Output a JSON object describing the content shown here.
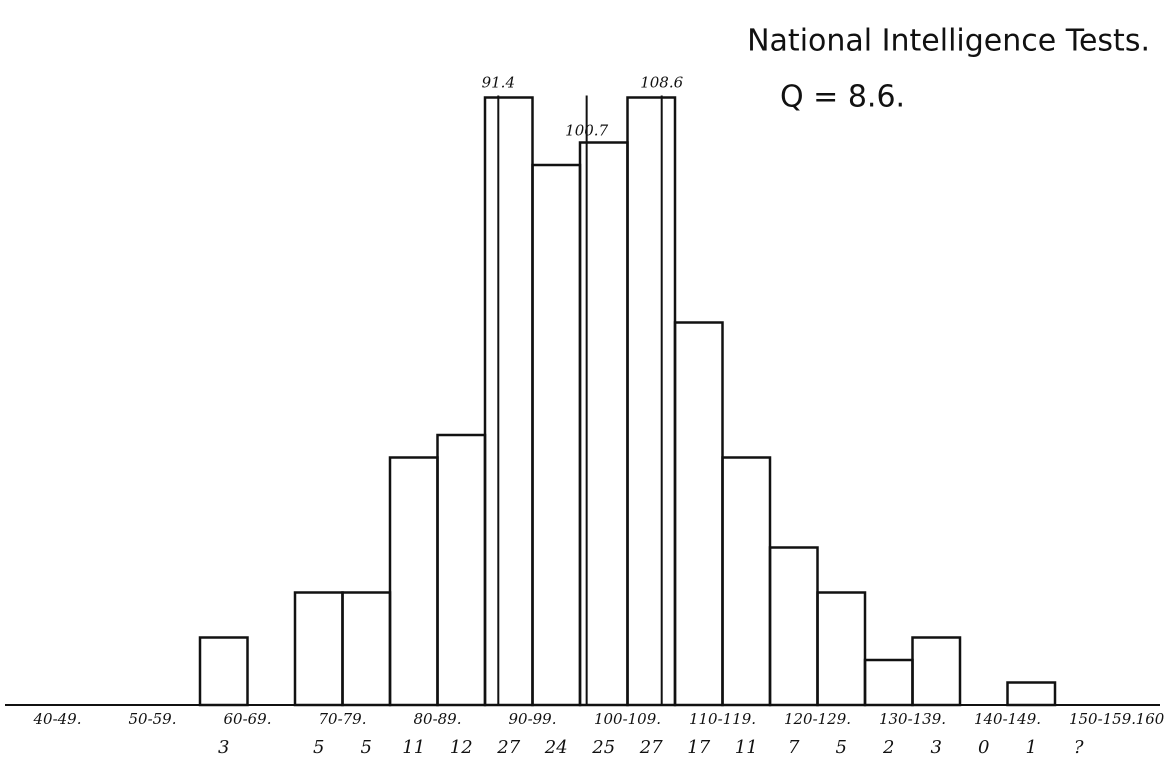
{
  "chart_data": {
    "type": "histogram",
    "title": "National Intelligence Tests.",
    "subtitle": "Q = 8.6.",
    "bins": [
      60,
      65,
      70,
      75,
      80,
      85,
      90,
      95,
      100,
      105,
      110,
      115,
      120,
      125,
      130,
      135,
      140,
      145,
      150,
      155
    ],
    "values": [
      3,
      0,
      5,
      5,
      11,
      12,
      27,
      24,
      25,
      27,
      17,
      11,
      7,
      5,
      2,
      3,
      0,
      1,
      null
    ],
    "value_labels": [
      "3",
      null,
      "5",
      "5",
      "11",
      "12",
      "27",
      "24",
      "25",
      "27",
      "17",
      "11",
      "7",
      "5",
      "2",
      "3",
      "0",
      "1",
      "?"
    ],
    "color": "#111111",
    "xlim": [
      40,
      160
    ],
    "xticks": [
      {
        "value": 45,
        "label": "40-49."
      },
      {
        "value": 55,
        "label": "50-59."
      },
      {
        "value": 65,
        "label": "60-69."
      },
      {
        "value": 75,
        "label": "70-79."
      },
      {
        "value": 85,
        "label": "80-89."
      },
      {
        "value": 95,
        "label": "90-99."
      },
      {
        "value": 105,
        "label": "100-109."
      },
      {
        "value": 115,
        "label": "110-119."
      },
      {
        "value": 125,
        "label": "120-129."
      },
      {
        "value": 135,
        "label": "130-139."
      },
      {
        "value": 145,
        "label": "140-149."
      },
      {
        "value": 155,
        "label": "150-159."
      },
      160
    ],
    "ylim": [
      0,
      30
    ],
    "markers": [
      91.4,
      100.7,
      108.6
    ]
  }
}
